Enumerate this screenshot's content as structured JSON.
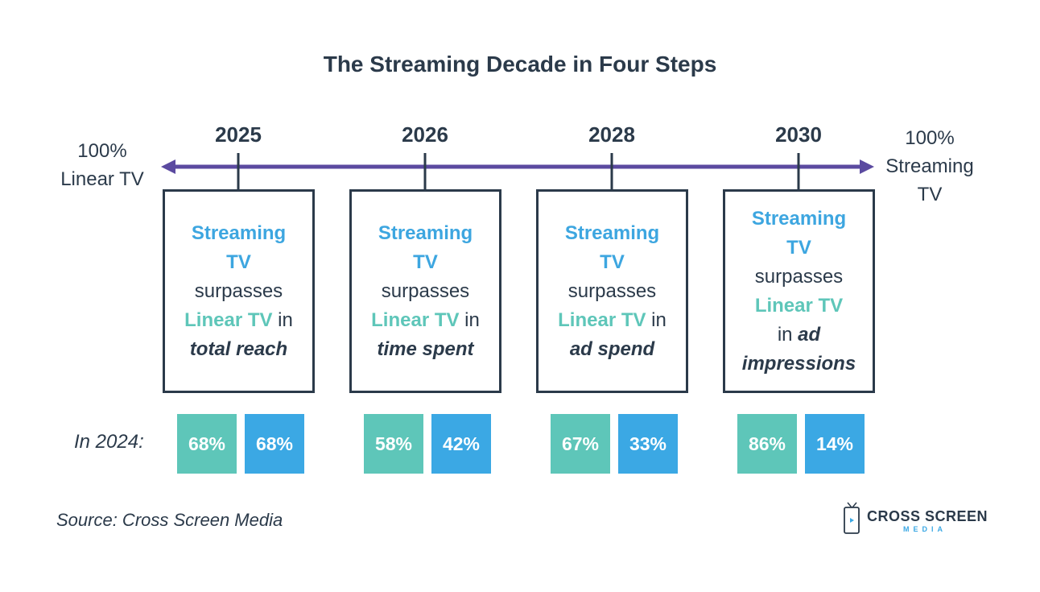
{
  "title": "The Streaming Decade in Four Steps",
  "left_end": {
    "line1": "100%",
    "line2": "Linear TV"
  },
  "right_end": {
    "line1": "100%",
    "line2": "Streaming",
    "line3": "TV"
  },
  "colors": {
    "navy": "#2b3a4a",
    "streaming_blue": "#3ba8e4",
    "linear_teal": "#5ec6b9",
    "arrow": "#5b4aa0"
  },
  "milestones": [
    {
      "year": "2025",
      "s1": "Streaming",
      "s2": "TV",
      "verb": "surpasses",
      "l1": "Linear TV",
      "prep": "in",
      "metric": "total reach",
      "linear_pct": "68%",
      "streaming_pct": "68%"
    },
    {
      "year": "2026",
      "s1": "Streaming",
      "s2": "TV",
      "verb": "surpasses",
      "l1": "Linear TV",
      "prep": "in",
      "metric": "time spent",
      "linear_pct": "58%",
      "streaming_pct": "42%"
    },
    {
      "year": "2028",
      "s1": "Streaming",
      "s2": "TV",
      "verb": "surpasses",
      "l1": "Linear TV",
      "prep": "in",
      "metric": "ad spend",
      "linear_pct": "67%",
      "streaming_pct": "33%"
    },
    {
      "year": "2030",
      "s1": "Streaming",
      "s2": "TV",
      "verb": "surpasses",
      "l1": "Linear TV",
      "prep": "in",
      "metric1": "ad",
      "metric2": "impressions",
      "linear_pct": "86%",
      "streaming_pct": "14%"
    }
  ],
  "in_2024_label": "In 2024:",
  "source": "Source: Cross Screen Media",
  "logo": {
    "name": "CROSS SCREEN",
    "sub": "MEDIA",
    "icon": "tv-phone-icon"
  }
}
